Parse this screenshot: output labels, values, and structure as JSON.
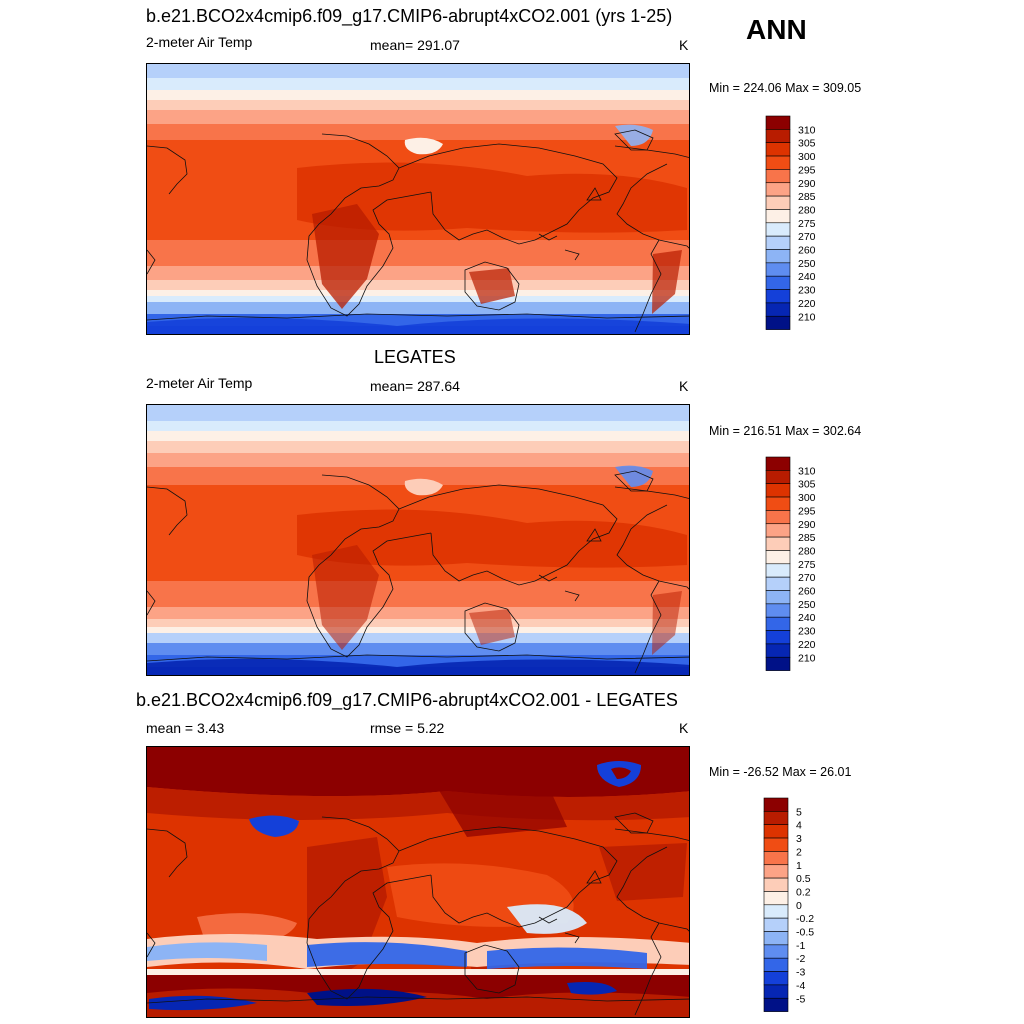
{
  "season": "ANN",
  "units": "K",
  "panels": [
    {
      "id": "model",
      "title": "b.e21.BCO2x4cmip6.f09_g17.CMIP6-abrupt4xCO2.001 (yrs 1-25)",
      "left_label": "2-meter Air Temp",
      "center_label": "mean= 291.07",
      "right_label": "K",
      "minmax": "Min = 224.06 Max = 309.05",
      "colorbar_labels": [
        "310",
        "305",
        "300",
        "295",
        "290",
        "285",
        "280",
        "275",
        "270",
        "260",
        "250",
        "240",
        "230",
        "220",
        "210"
      ],
      "colors": [
        "#8c0000",
        "#b81c00",
        "#dd3300",
        "#f04d14",
        "#f8744a",
        "#fca386",
        "#fdcdb8",
        "#fdf0e6",
        "#d9ebfc",
        "#b5d0fa",
        "#8db4f5",
        "#5f8df0",
        "#3366e8",
        "#1440d9",
        "#0626b3",
        "#001187"
      ]
    },
    {
      "id": "obs",
      "title": "LEGATES",
      "left_label": "2-meter Air Temp",
      "center_label": "mean= 287.64",
      "right_label": "K",
      "minmax": "Min = 216.51 Max = 302.64",
      "colorbar_labels": [
        "310",
        "305",
        "300",
        "295",
        "290",
        "285",
        "280",
        "275",
        "270",
        "260",
        "250",
        "240",
        "230",
        "220",
        "210"
      ],
      "colors": [
        "#8c0000",
        "#b81c00",
        "#dd3300",
        "#f04d14",
        "#f8744a",
        "#fca386",
        "#fdcdb8",
        "#fdf0e6",
        "#d9ebfc",
        "#b5d0fa",
        "#8db4f5",
        "#5f8df0",
        "#3366e8",
        "#1440d9",
        "#0626b3",
        "#001187"
      ]
    },
    {
      "id": "diff",
      "title": "b.e21.BCO2x4cmip6.f09_g17.CMIP6-abrupt4xCO2.001 - LEGATES",
      "left_label": "mean =   3.43",
      "center_label": "rmse =   5.22",
      "right_label": "K",
      "minmax": "Min = -26.52 Max =  26.01",
      "colorbar_labels": [
        "5",
        "4",
        "3",
        "2",
        "1",
        "0.5",
        "0.2",
        "0",
        "-0.2",
        "-0.5",
        "-1",
        "-2",
        "-3",
        "-4",
        "-5"
      ],
      "colors": [
        "#8c0000",
        "#b81c00",
        "#dd3300",
        "#f04d14",
        "#f8744a",
        "#fca386",
        "#fdcdb8",
        "#fdf0e6",
        "#d9ebfc",
        "#b5d0fa",
        "#8db4f5",
        "#5f8df0",
        "#3366e8",
        "#1440d9",
        "#0626b3",
        "#001187"
      ]
    }
  ]
}
